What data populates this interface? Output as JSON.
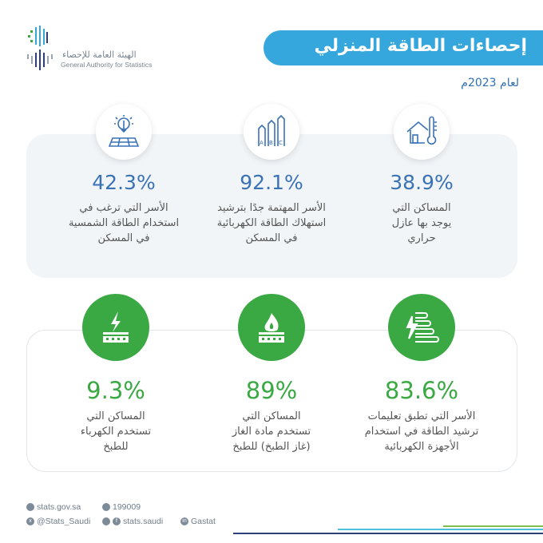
{
  "header": {
    "logo": {
      "arabic": "الهيئة العامة للإحصاء",
      "english": "General Authority for Statistics"
    },
    "title": "إحصاءات الطاقة المنزلي",
    "subtitle": "لعام 2023م"
  },
  "colors": {
    "title_bg": "#35a7dc",
    "blue": "#3a72b6",
    "green": "#3aa843"
  },
  "top_stats": [
    {
      "icon": "thermometer-house-icon",
      "value": "38.9%",
      "lines": [
        "المساكن التي",
        "يوجد بها عازل",
        "حراري"
      ]
    },
    {
      "icon": "energy-rating-abc-icon",
      "value": "92.1%",
      "lines": [
        "الأسر المهتمة جدًا بترشيد",
        "استهلاك الطاقة الكهربائية",
        "في المسكن"
      ]
    },
    {
      "icon": "solar-panel-icon",
      "value": "42.3%",
      "lines": [
        "الأسر التي ترغب في",
        "استخدام الطاقة الشمسية",
        "في المسكن"
      ]
    }
  ],
  "bottom_stats": [
    {
      "icon": "energy-efficiency-icon",
      "value": "83.6%",
      "lines": [
        "الأسر التي تطبق تعليمات",
        "ترشيد الطاقة في استخدام",
        "الأجهزة الكهربائية"
      ]
    },
    {
      "icon": "gas-stove-icon",
      "value": "89%",
      "lines": [
        "المساكن التي",
        "تستخدم مادة الغاز",
        "(غاز الطبخ) للطبخ"
      ]
    },
    {
      "icon": "electric-stove-icon",
      "value": "9.3%",
      "lines": [
        "المساكن التي",
        "تستخدم الكهرباء",
        "للطبخ"
      ]
    }
  ],
  "footer": {
    "website": "stats.gov.sa",
    "phone": "199009",
    "twitter": "@Stats_Saudi",
    "social": "stats.saudi",
    "linkedin": "Gastat"
  }
}
